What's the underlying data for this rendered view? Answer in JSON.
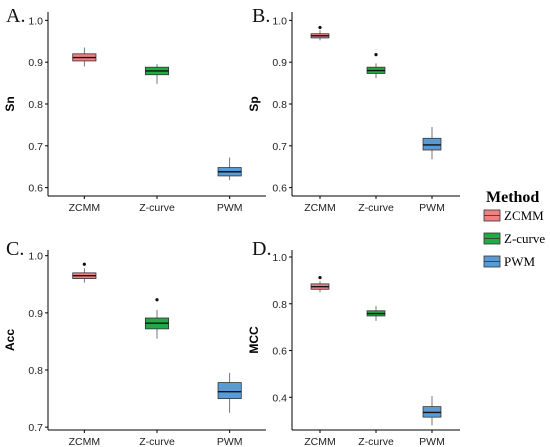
{
  "chart_data": [
    {
      "type": "boxplot",
      "panel_label": "A.",
      "ylabel": "Sn",
      "categories": [
        "ZCMM",
        "Z-curve",
        "PWM"
      ],
      "ylim": [
        0.58,
        1.02
      ],
      "yticks": [
        0.6,
        0.7,
        0.8,
        0.9,
        1.0
      ],
      "ytick_labels": [
        "0.6",
        "0.7",
        "0.8",
        "0.9",
        "1.0"
      ],
      "boxes": [
        {
          "min": 0.89,
          "q1": 0.903,
          "median": 0.911,
          "q3": 0.92,
          "max": 0.935,
          "outliers": []
        },
        {
          "min": 0.848,
          "q1": 0.87,
          "median": 0.879,
          "q3": 0.888,
          "max": 0.895,
          "outliers": []
        },
        {
          "min": 0.618,
          "q1": 0.628,
          "median": 0.638,
          "q3": 0.648,
          "max": 0.672,
          "outliers": []
        }
      ]
    },
    {
      "type": "boxplot",
      "panel_label": "B.",
      "ylabel": "Sp",
      "categories": [
        "ZCMM",
        "Z-curve",
        "PWM"
      ],
      "ylim": [
        0.58,
        1.02
      ],
      "yticks": [
        0.6,
        0.7,
        0.8,
        0.9,
        1.0
      ],
      "ytick_labels": [
        "0.6",
        "0.7",
        "0.8",
        "0.9",
        "1.0"
      ],
      "boxes": [
        {
          "min": 0.952,
          "q1": 0.958,
          "median": 0.963,
          "q3": 0.968,
          "max": 0.976,
          "outliers": [
            0.983
          ]
        },
        {
          "min": 0.862,
          "q1": 0.873,
          "median": 0.88,
          "q3": 0.888,
          "max": 0.897,
          "outliers": [
            0.918
          ]
        },
        {
          "min": 0.668,
          "q1": 0.69,
          "median": 0.702,
          "q3": 0.718,
          "max": 0.745,
          "outliers": []
        }
      ]
    },
    {
      "type": "boxplot",
      "panel_label": "C.",
      "ylabel": "Acc",
      "categories": [
        "ZCMM",
        "Z-curve",
        "PWM"
      ],
      "ylim": [
        0.695,
        1.01
      ],
      "yticks": [
        0.7,
        0.8,
        0.9,
        1.0
      ],
      "ytick_labels": [
        "0.7",
        "0.8",
        "0.9",
        "1.0"
      ],
      "boxes": [
        {
          "min": 0.953,
          "q1": 0.96,
          "median": 0.965,
          "q3": 0.97,
          "max": 0.978,
          "outliers": [
            0.985
          ]
        },
        {
          "min": 0.855,
          "q1": 0.872,
          "median": 0.882,
          "q3": 0.891,
          "max": 0.905,
          "outliers": [
            0.923
          ]
        },
        {
          "min": 0.725,
          "q1": 0.75,
          "median": 0.762,
          "q3": 0.778,
          "max": 0.795,
          "outliers": []
        }
      ]
    },
    {
      "type": "boxplot",
      "panel_label": "D.",
      "ylabel": "MCC",
      "categories": [
        "ZCMM",
        "Z-curve",
        "PWM"
      ],
      "ylim": [
        0.26,
        1.03
      ],
      "yticks": [
        0.4,
        0.6,
        0.8,
        1.0
      ],
      "ytick_labels": [
        "0.4",
        "0.6",
        "0.8",
        "1.0"
      ],
      "boxes": [
        {
          "min": 0.85,
          "q1": 0.862,
          "median": 0.873,
          "q3": 0.885,
          "max": 0.897,
          "outliers": [
            0.912
          ]
        },
        {
          "min": 0.727,
          "q1": 0.748,
          "median": 0.758,
          "q3": 0.77,
          "max": 0.79,
          "outliers": []
        },
        {
          "min": 0.28,
          "q1": 0.315,
          "median": 0.335,
          "q3": 0.36,
          "max": 0.405,
          "outliers": []
        }
      ]
    }
  ],
  "legend": {
    "title": "Method",
    "entries": [
      {
        "label": "ZCMM",
        "color": "#f08080"
      },
      {
        "label": "Z-curve",
        "color": "#22aa44"
      },
      {
        "label": "PWM",
        "color": "#5b9bd5"
      }
    ]
  },
  "colors": {
    "ZCMM": "#f08080",
    "Z-curve": "#22aa44",
    "PWM": "#5b9bd5",
    "axis": "#000000"
  }
}
